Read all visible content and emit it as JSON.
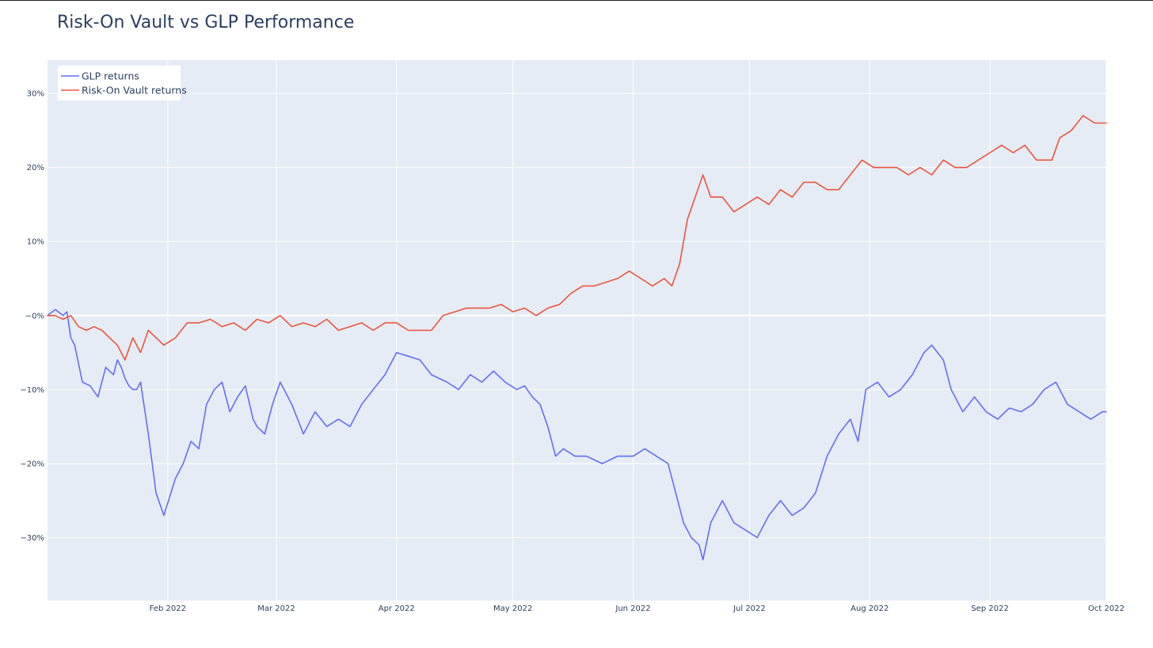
{
  "chart_data": {
    "type": "line",
    "title": "Risk-On Vault vs GLP Performance",
    "xlabel": "",
    "ylabel": "",
    "x_range": [
      "2022-01-01",
      "2022-10-01"
    ],
    "ylim": [
      -0.385,
      0.345
    ],
    "y_tick_values": [
      -0.3,
      -0.2,
      -0.1,
      0,
      0.1,
      0.2,
      0.3
    ],
    "y_tick_labels": [
      "−30%",
      "−20%",
      "−10%",
      "−0%",
      "10%",
      "20%",
      "30%"
    ],
    "x_tick_values": [
      "2022-02-01",
      "2022-03-01",
      "2022-04-01",
      "2022-05-01",
      "2022-06-01",
      "2022-07-01",
      "2022-08-01",
      "2022-09-01",
      "2022-10-01"
    ],
    "x_tick_labels": [
      "Feb 2022",
      "Mar 2022",
      "Apr 2022",
      "May 2022",
      "Jun 2022",
      "Jul 2022",
      "Aug 2022",
      "Sep 2022",
      "Oct 2022"
    ],
    "grid": true,
    "legend_position": "top-left",
    "background_color": "#e5ecf6",
    "grid_color": "#ffffff",
    "series": [
      {
        "name": "GLP returns",
        "color": "#636efa",
        "x": [
          "2022-01-01",
          "2022-01-03",
          "2022-01-05",
          "2022-01-06",
          "2022-01-07",
          "2022-01-08",
          "2022-01-10",
          "2022-01-12",
          "2022-01-14",
          "2022-01-16",
          "2022-01-18",
          "2022-01-19",
          "2022-01-20",
          "2022-01-21",
          "2022-01-22",
          "2022-01-23",
          "2022-01-24",
          "2022-01-25",
          "2022-01-27",
          "2022-01-29",
          "2022-01-31",
          "2022-02-03",
          "2022-02-05",
          "2022-02-07",
          "2022-02-09",
          "2022-02-11",
          "2022-02-13",
          "2022-02-15",
          "2022-02-17",
          "2022-02-19",
          "2022-02-21",
          "2022-02-23",
          "2022-02-24",
          "2022-02-26",
          "2022-02-28",
          "2022-03-02",
          "2022-03-05",
          "2022-03-08",
          "2022-03-11",
          "2022-03-14",
          "2022-03-17",
          "2022-03-20",
          "2022-03-23",
          "2022-03-26",
          "2022-03-29",
          "2022-04-01",
          "2022-04-04",
          "2022-04-07",
          "2022-04-10",
          "2022-04-14",
          "2022-04-17",
          "2022-04-20",
          "2022-04-23",
          "2022-04-26",
          "2022-04-29",
          "2022-05-02",
          "2022-05-04",
          "2022-05-06",
          "2022-05-08",
          "2022-05-10",
          "2022-05-12",
          "2022-05-14",
          "2022-05-17",
          "2022-05-20",
          "2022-05-24",
          "2022-05-28",
          "2022-06-01",
          "2022-06-04",
          "2022-06-07",
          "2022-06-10",
          "2022-06-12",
          "2022-06-14",
          "2022-06-16",
          "2022-06-18",
          "2022-06-19",
          "2022-06-21",
          "2022-06-24",
          "2022-06-27",
          "2022-06-30",
          "2022-07-03",
          "2022-07-06",
          "2022-07-09",
          "2022-07-12",
          "2022-07-15",
          "2022-07-18",
          "2022-07-21",
          "2022-07-24",
          "2022-07-27",
          "2022-07-29",
          "2022-07-31",
          "2022-08-03",
          "2022-08-06",
          "2022-08-09",
          "2022-08-12",
          "2022-08-15",
          "2022-08-17",
          "2022-08-20",
          "2022-08-22",
          "2022-08-25",
          "2022-08-28",
          "2022-08-31",
          "2022-09-03",
          "2022-09-06",
          "2022-09-09",
          "2022-09-12",
          "2022-09-15",
          "2022-09-18",
          "2022-09-21",
          "2022-09-24",
          "2022-09-27",
          "2022-09-30",
          "2022-10-01"
        ],
        "y": [
          0.0,
          0.008,
          0.0,
          0.005,
          -0.03,
          -0.04,
          -0.09,
          -0.095,
          -0.11,
          -0.07,
          -0.08,
          -0.06,
          -0.07,
          -0.085,
          -0.095,
          -0.1,
          -0.1,
          -0.09,
          -0.16,
          -0.24,
          -0.27,
          -0.22,
          -0.2,
          -0.17,
          -0.18,
          -0.12,
          -0.1,
          -0.09,
          -0.13,
          -0.11,
          -0.095,
          -0.14,
          -0.15,
          -0.16,
          -0.12,
          -0.09,
          -0.12,
          -0.16,
          -0.13,
          -0.15,
          -0.14,
          -0.15,
          -0.12,
          -0.1,
          -0.08,
          -0.05,
          -0.055,
          -0.06,
          -0.08,
          -0.09,
          -0.1,
          -0.08,
          -0.09,
          -0.075,
          -0.09,
          -0.1,
          -0.095,
          -0.11,
          -0.12,
          -0.15,
          -0.19,
          -0.18,
          -0.19,
          -0.19,
          -0.2,
          -0.19,
          -0.19,
          -0.18,
          -0.19,
          -0.2,
          -0.24,
          -0.28,
          -0.3,
          -0.31,
          -0.33,
          -0.28,
          -0.25,
          -0.28,
          -0.29,
          -0.3,
          -0.27,
          -0.25,
          -0.27,
          -0.26,
          -0.24,
          -0.19,
          -0.16,
          -0.14,
          -0.17,
          -0.1,
          -0.09,
          -0.11,
          -0.1,
          -0.08,
          -0.05,
          -0.04,
          -0.06,
          -0.1,
          -0.13,
          -0.11,
          -0.13,
          -0.14,
          -0.125,
          -0.13,
          -0.12,
          -0.1,
          -0.09,
          -0.12,
          -0.13,
          -0.14,
          -0.13,
          -0.13
        ]
      },
      {
        "name": "Risk-On Vault returns",
        "color": "#ef553b",
        "x": [
          "2022-01-01",
          "2022-01-03",
          "2022-01-05",
          "2022-01-07",
          "2022-01-09",
          "2022-01-11",
          "2022-01-13",
          "2022-01-15",
          "2022-01-17",
          "2022-01-19",
          "2022-01-21",
          "2022-01-23",
          "2022-01-25",
          "2022-01-27",
          "2022-01-29",
          "2022-01-31",
          "2022-02-03",
          "2022-02-06",
          "2022-02-09",
          "2022-02-12",
          "2022-02-15",
          "2022-02-18",
          "2022-02-21",
          "2022-02-24",
          "2022-02-27",
          "2022-03-02",
          "2022-03-05",
          "2022-03-08",
          "2022-03-11",
          "2022-03-14",
          "2022-03-17",
          "2022-03-20",
          "2022-03-23",
          "2022-03-26",
          "2022-03-29",
          "2022-04-01",
          "2022-04-04",
          "2022-04-07",
          "2022-04-10",
          "2022-04-13",
          "2022-04-16",
          "2022-04-19",
          "2022-04-22",
          "2022-04-25",
          "2022-04-28",
          "2022-05-01",
          "2022-05-04",
          "2022-05-07",
          "2022-05-10",
          "2022-05-13",
          "2022-05-16",
          "2022-05-19",
          "2022-05-22",
          "2022-05-25",
          "2022-05-28",
          "2022-05-31",
          "2022-06-03",
          "2022-06-06",
          "2022-06-09",
          "2022-06-11",
          "2022-06-13",
          "2022-06-15",
          "2022-06-17",
          "2022-06-19",
          "2022-06-21",
          "2022-06-24",
          "2022-06-27",
          "2022-06-30",
          "2022-07-03",
          "2022-07-06",
          "2022-07-09",
          "2022-07-12",
          "2022-07-15",
          "2022-07-18",
          "2022-07-21",
          "2022-07-24",
          "2022-07-27",
          "2022-07-30",
          "2022-08-02",
          "2022-08-05",
          "2022-08-08",
          "2022-08-11",
          "2022-08-14",
          "2022-08-17",
          "2022-08-20",
          "2022-08-23",
          "2022-08-26",
          "2022-08-29",
          "2022-09-01",
          "2022-09-04",
          "2022-09-07",
          "2022-09-10",
          "2022-09-13",
          "2022-09-15",
          "2022-09-17",
          "2022-09-19",
          "2022-09-22",
          "2022-09-25",
          "2022-09-28",
          "2022-10-01"
        ],
        "y": [
          0.0,
          0.0,
          -0.005,
          0.0,
          -0.015,
          -0.02,
          -0.015,
          -0.02,
          -0.03,
          -0.04,
          -0.06,
          -0.03,
          -0.05,
          -0.02,
          -0.03,
          -0.04,
          -0.03,
          -0.01,
          -0.01,
          -0.005,
          -0.015,
          -0.01,
          -0.02,
          -0.005,
          -0.01,
          0.0,
          -0.015,
          -0.01,
          -0.015,
          -0.005,
          -0.02,
          -0.015,
          -0.01,
          -0.02,
          -0.01,
          -0.01,
          -0.02,
          -0.02,
          -0.02,
          0.0,
          0.005,
          0.01,
          0.01,
          0.01,
          0.015,
          0.005,
          0.01,
          0.0,
          0.01,
          0.015,
          0.03,
          0.04,
          0.04,
          0.045,
          0.05,
          0.06,
          0.05,
          0.04,
          0.05,
          0.04,
          0.07,
          0.13,
          0.16,
          0.19,
          0.16,
          0.16,
          0.14,
          0.15,
          0.16,
          0.15,
          0.17,
          0.16,
          0.18,
          0.18,
          0.17,
          0.17,
          0.19,
          0.21,
          0.2,
          0.2,
          0.2,
          0.19,
          0.2,
          0.19,
          0.21,
          0.2,
          0.2,
          0.21,
          0.22,
          0.23,
          0.22,
          0.23,
          0.21,
          0.21,
          0.21,
          0.24,
          0.25,
          0.27,
          0.26,
          0.26
        ]
      }
    ]
  }
}
